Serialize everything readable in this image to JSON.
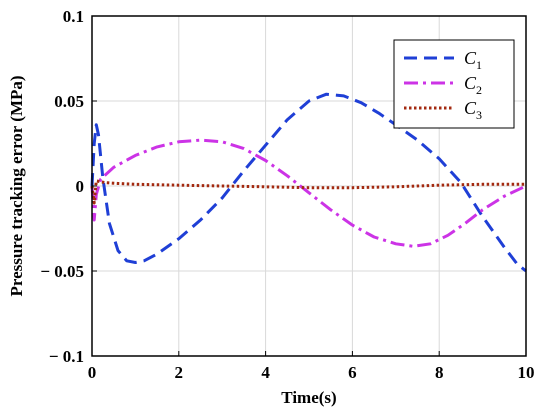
{
  "chart_data": {
    "type": "line",
    "title": "",
    "xlabel": "Time(s)",
    "ylabel": "Pressure tracking error (MPa)",
    "xlim": [
      0,
      10
    ],
    "ylim": [
      -0.1,
      0.1
    ],
    "xticks": [
      0,
      2,
      4,
      6,
      8,
      10
    ],
    "xtick_labels": [
      "0",
      "2",
      "4",
      "6",
      "8",
      "10"
    ],
    "yticks": [
      -0.1,
      -0.05,
      0,
      0.05,
      0.1
    ],
    "ytick_labels": [
      "− 0.1",
      "− 0.05",
      "0",
      "0.05",
      "0.1"
    ],
    "grid": true,
    "legend_position": "top-right",
    "series": [
      {
        "name": "C1",
        "legend_main": "C",
        "legend_sub": "1",
        "color": "#1f3fd6",
        "style": "dashed",
        "x": [
          0,
          0.05,
          0.1,
          0.15,
          0.25,
          0.4,
          0.6,
          0.8,
          1.0,
          1.2,
          1.5,
          2.0,
          2.5,
          3.0,
          3.5,
          4.0,
          4.5,
          5.0,
          5.4,
          5.8,
          6.2,
          6.6,
          7.0,
          7.5,
          8.0,
          8.5,
          9.0,
          9.5,
          9.8,
          10.0
        ],
        "y": [
          0,
          0.025,
          0.036,
          0.03,
          0.005,
          -0.022,
          -0.038,
          -0.044,
          -0.045,
          -0.044,
          -0.04,
          -0.031,
          -0.02,
          -0.007,
          0.009,
          0.024,
          0.039,
          0.05,
          0.054,
          0.053,
          0.049,
          0.043,
          0.036,
          0.027,
          0.016,
          0.002,
          -0.018,
          -0.036,
          -0.046,
          -0.05
        ]
      },
      {
        "name": "C2",
        "legend_main": "C",
        "legend_sub": "2",
        "color": "#cc33e6",
        "style": "dashdot",
        "x": [
          0,
          0.05,
          0.1,
          0.2,
          0.5,
          1.0,
          1.5,
          2.0,
          2.5,
          3.0,
          3.5,
          4.0,
          4.5,
          5.0,
          5.5,
          6.0,
          6.5,
          7.0,
          7.4,
          7.8,
          8.2,
          8.6,
          9.0,
          9.5,
          10.0
        ],
        "y": [
          0,
          -0.02,
          -0.005,
          0.004,
          0.011,
          0.018,
          0.023,
          0.026,
          0.027,
          0.026,
          0.022,
          0.015,
          0.006,
          -0.004,
          -0.014,
          -0.023,
          -0.03,
          -0.034,
          -0.0355,
          -0.034,
          -0.029,
          -0.022,
          -0.014,
          -0.006,
          0.0
        ]
      },
      {
        "name": "C3",
        "legend_main": "C",
        "legend_sub": "3",
        "color": "#a32a10",
        "style": "dotted",
        "x": [
          0,
          0.05,
          0.1,
          0.3,
          0.6,
          1.0,
          2.0,
          3.0,
          4.0,
          5.0,
          6.0,
          7.0,
          8.0,
          9.0,
          10.0
        ],
        "y": [
          0,
          -0.01,
          0.003,
          0.002,
          0.0015,
          0.001,
          0.0005,
          0.0,
          -0.0005,
          -0.001,
          -0.001,
          -0.0005,
          0.0005,
          0.001,
          0.001
        ]
      }
    ]
  }
}
